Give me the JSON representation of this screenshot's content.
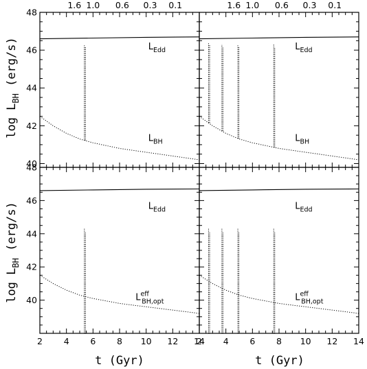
{
  "chart_data": {
    "type": "line",
    "layout": "2x2 panel grid",
    "xlabel": "t (Gyr)",
    "ylabel": "log L_BH (erg/s)",
    "xlim": [
      2,
      14
    ],
    "xticks": [
      "2",
      "4",
      "6",
      "8",
      "10",
      "12",
      "14"
    ],
    "top_axis_ticks": [
      "1.6",
      "1.0",
      "0.6",
      "0.3",
      "0.1"
    ],
    "top_axis_tick_t": [
      4.6,
      6.0,
      8.2,
      10.3,
      12.2
    ],
    "panels": [
      {
        "id": "top-left",
        "ylim": [
          39.8,
          48
        ],
        "yticks": [
          "40",
          "42",
          "44",
          "46",
          "48"
        ],
        "series": [
          {
            "label": "L_Edd",
            "label_main": "L",
            "label_sub": "Edd",
            "style": "solid",
            "x": [
              2,
              6,
              10,
              14
            ],
            "y": [
              46.6,
              46.64,
              46.68,
              46.7
            ]
          },
          {
            "label": "L_BH",
            "label_main": "L",
            "label_sub": "BH",
            "style": "dotted",
            "x": [
              2,
              3,
              4,
              5,
              6,
              7,
              8,
              9,
              10,
              11,
              12,
              13,
              14
            ],
            "y": [
              42.5,
              42.0,
              41.6,
              41.3,
              41.1,
              40.95,
              40.8,
              40.7,
              40.6,
              40.5,
              40.4,
              40.3,
              40.2
            ],
            "spikes": [
              {
                "t": 5.35,
                "peak": 46.3
              }
            ]
          }
        ]
      },
      {
        "id": "top-right",
        "ylim": [
          39.8,
          48
        ],
        "yticks": [
          "40",
          "42",
          "44",
          "46",
          "48"
        ],
        "series": [
          {
            "label": "L_Edd",
            "label_main": "L",
            "label_sub": "Edd",
            "style": "solid",
            "x": [
              2,
              6,
              10,
              14
            ],
            "y": [
              46.6,
              46.64,
              46.68,
              46.7
            ]
          },
          {
            "label": "L_BH",
            "label_main": "L",
            "label_sub": "BH",
            "style": "dotted",
            "x": [
              2,
              3,
              4,
              5,
              6,
              7,
              8,
              9,
              10,
              11,
              12,
              13,
              14
            ],
            "y": [
              42.5,
              42.0,
              41.6,
              41.3,
              41.1,
              40.95,
              40.8,
              40.7,
              40.6,
              40.5,
              40.4,
              40.3,
              40.2
            ],
            "spikes": [
              {
                "t": 2.7,
                "peak": 46.4
              },
              {
                "t": 3.7,
                "peak": 46.3
              },
              {
                "t": 4.9,
                "peak": 46.3
              },
              {
                "t": 7.6,
                "peak": 46.3
              }
            ]
          }
        ]
      },
      {
        "id": "bottom-left",
        "ylim": [
          38,
          48
        ],
        "yticks": [
          "40",
          "42",
          "44",
          "46",
          "48"
        ],
        "series": [
          {
            "label": "L_Edd",
            "label_main": "L",
            "label_sub": "Edd",
            "style": "solid",
            "x": [
              2,
              6,
              10,
              14
            ],
            "y": [
              46.6,
              46.64,
              46.68,
              46.7
            ]
          },
          {
            "label": "L_BH,opt^eff",
            "label_main": "L",
            "label_sub": "BH,opt",
            "label_sup": "eff",
            "style": "dotted",
            "x": [
              2,
              3,
              4,
              5,
              6,
              7,
              8,
              9,
              10,
              11,
              12,
              13,
              14
            ],
            "y": [
              41.5,
              41.0,
              40.6,
              40.3,
              40.1,
              39.95,
              39.8,
              39.7,
              39.6,
              39.5,
              39.4,
              39.3,
              39.2
            ],
            "spikes": [
              {
                "t": 5.35,
                "peak": 44.3,
                "low": 38.0
              }
            ]
          }
        ]
      },
      {
        "id": "bottom-right",
        "ylim": [
          38,
          48
        ],
        "yticks": [
          "40",
          "42",
          "44",
          "46",
          "48"
        ],
        "series": [
          {
            "label": "L_Edd",
            "label_main": "L",
            "label_sub": "Edd",
            "style": "solid",
            "x": [
              2,
              6,
              10,
              14
            ],
            "y": [
              46.6,
              46.64,
              46.68,
              46.7
            ]
          },
          {
            "label": "L_BH,opt^eff",
            "label_main": "L",
            "label_sub": "BH,opt",
            "label_sup": "eff",
            "style": "dotted",
            "x": [
              2,
              3,
              4,
              5,
              6,
              7,
              8,
              9,
              10,
              11,
              12,
              13,
              14
            ],
            "y": [
              41.5,
              41.0,
              40.6,
              40.3,
              40.1,
              39.95,
              39.8,
              39.7,
              39.6,
              39.5,
              39.4,
              39.3,
              39.2
            ],
            "spikes": [
              {
                "t": 2.7,
                "peak": 44.3,
                "low": 38.0
              },
              {
                "t": 3.7,
                "peak": 44.3,
                "low": 38.0
              },
              {
                "t": 4.9,
                "peak": 44.3,
                "low": 38.0
              },
              {
                "t": 7.6,
                "peak": 44.3,
                "low": 38.0
              }
            ]
          }
        ]
      }
    ]
  }
}
